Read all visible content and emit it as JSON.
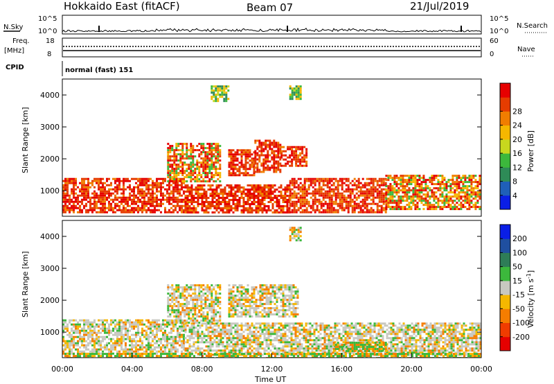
{
  "header": {
    "station": "Hokkaido East (fitACF)",
    "beam": "Beam 07",
    "date": "21/Jul/2019"
  },
  "strip_labels": {
    "nsky": "N.Sky",
    "nsearch": "N.Search",
    "freq": "Freq.",
    "freq_unit": "[MHz]",
    "nave": "Nave",
    "cpid": "CPID",
    "cpid_text": "normal (fast) 151",
    "nsky_ticks": [
      "10^5",
      "10^0"
    ],
    "nsearch_ticks": [
      "10^5",
      "10^0"
    ],
    "freq_ticks": [
      "18",
      "8"
    ],
    "nave_ticks": [
      "60",
      "0"
    ]
  },
  "chart_data": [
    {
      "type": "heatmap",
      "name": "power",
      "xlabel": "",
      "ylabel": "Slant Range [km]",
      "yticks": [
        "1000",
        "2000",
        "3000",
        "4000"
      ],
      "ylim": [
        200,
        4500
      ],
      "xlim": [
        0,
        24
      ],
      "colorbar": {
        "label": "Power [dB]",
        "ticks": [
          "4",
          "8",
          "12",
          "16",
          "20",
          "24",
          "28"
        ],
        "colors": [
          "#0a1ee6",
          "#1f5fb8",
          "#2e8b57",
          "#3cb83c",
          "#c8d81e",
          "#f5b700",
          "#f07d00",
          "#e63c00",
          "#e60000"
        ]
      },
      "bands": [
        {
          "t": [
            0.0,
            7.0
          ],
          "r": [
            300,
            1400
          ],
          "level": "high"
        },
        {
          "t": [
            6.0,
            9.0
          ],
          "r": [
            1300,
            2500
          ],
          "level": "mid"
        },
        {
          "t": [
            9.5,
            11.0
          ],
          "r": [
            1500,
            2300
          ],
          "level": "high"
        },
        {
          "t": [
            11.0,
            12.5
          ],
          "r": [
            1600,
            2600
          ],
          "level": "high"
        },
        {
          "t": [
            12.5,
            14.0
          ],
          "r": [
            1800,
            2400
          ],
          "level": "high"
        },
        {
          "t": [
            7.0,
            13.0
          ],
          "r": [
            300,
            1200
          ],
          "level": "high"
        },
        {
          "t": [
            13.0,
            18.5
          ],
          "r": [
            300,
            1400
          ],
          "level": "high"
        },
        {
          "t": [
            18.5,
            24.0
          ],
          "r": [
            400,
            1500
          ],
          "level": "mid"
        },
        {
          "t": [
            8.5,
            9.5
          ],
          "r": [
            3800,
            4300
          ],
          "level": "low"
        },
        {
          "t": [
            13.0,
            13.7
          ],
          "r": [
            3900,
            4300
          ],
          "level": "low"
        }
      ]
    },
    {
      "type": "heatmap",
      "name": "velocity",
      "xlabel": "Time UT",
      "ylabel": "Slant Range [km]",
      "xticks": [
        "00:00",
        "04:00",
        "08:00",
        "12:00",
        "16:00",
        "20:00",
        "00:00"
      ],
      "yticks": [
        "1000",
        "2000",
        "3000",
        "4000"
      ],
      "ylim": [
        200,
        4500
      ],
      "xlim": [
        0,
        24
      ],
      "colorbar": {
        "label": "Velocity [m s",
        "label_exp": "-1",
        "label_close": "]",
        "ticks": [
          "-200",
          "-100",
          "-50",
          "-15",
          "15",
          "50",
          "100",
          "200"
        ],
        "colors": [
          "#e60000",
          "#f03c00",
          "#f57d00",
          "#f5b700",
          "#c8c8c0",
          "#3cb83c",
          "#2e7d57",
          "#1f4fa0",
          "#0a1ee6"
        ]
      },
      "bands": [
        {
          "t": [
            0.0,
            7.0
          ],
          "r": [
            300,
            1400
          ],
          "level": "gs"
        },
        {
          "t": [
            6.0,
            9.0
          ],
          "r": [
            1300,
            2500
          ],
          "level": "gs"
        },
        {
          "t": [
            9.5,
            13.5
          ],
          "r": [
            1500,
            2500
          ],
          "level": "gs"
        },
        {
          "t": [
            7.0,
            24.0
          ],
          "r": [
            300,
            1300
          ],
          "level": "gs"
        },
        {
          "t": [
            15.5,
            18.5
          ],
          "r": [
            400,
            700
          ],
          "level": "pos"
        },
        {
          "t": [
            0.0,
            24.0
          ],
          "r": [
            200,
            350
          ],
          "level": "pos"
        },
        {
          "t": [
            13.0,
            13.7
          ],
          "r": [
            3900,
            4300
          ],
          "level": "gs"
        }
      ]
    }
  ]
}
